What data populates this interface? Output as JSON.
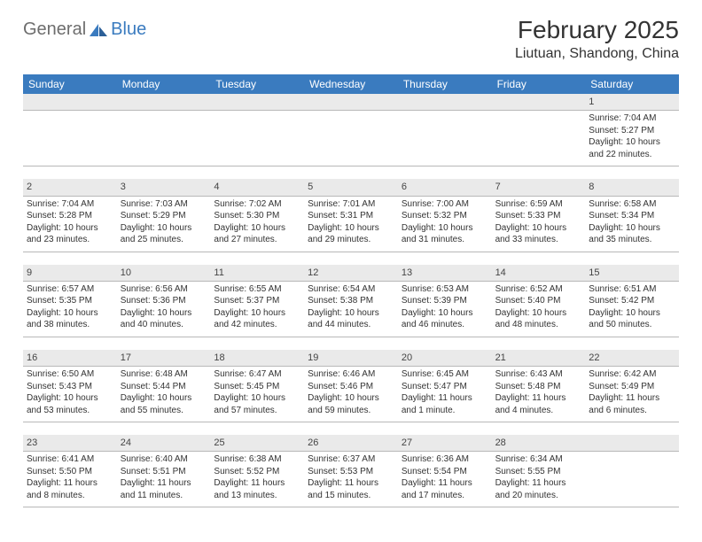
{
  "logo": {
    "part1": "General",
    "part2": "Blue"
  },
  "title": "February 2025",
  "location": "Liutuan, Shandong, China",
  "colors": {
    "header_bg": "#3a7bbf",
    "header_text": "#ffffff",
    "daynum_bg": "#eaeaea",
    "text": "#333333",
    "rule": "#b8b8b8",
    "background": "#ffffff"
  },
  "day_names": [
    "Sunday",
    "Monday",
    "Tuesday",
    "Wednesday",
    "Thursday",
    "Friday",
    "Saturday"
  ],
  "weeks": [
    [
      null,
      null,
      null,
      null,
      null,
      null,
      {
        "n": "1",
        "sunrise": "Sunrise: 7:04 AM",
        "sunset": "Sunset: 5:27 PM",
        "daylight1": "Daylight: 10 hours",
        "daylight2": "and 22 minutes."
      }
    ],
    [
      {
        "n": "2",
        "sunrise": "Sunrise: 7:04 AM",
        "sunset": "Sunset: 5:28 PM",
        "daylight1": "Daylight: 10 hours",
        "daylight2": "and 23 minutes."
      },
      {
        "n": "3",
        "sunrise": "Sunrise: 7:03 AM",
        "sunset": "Sunset: 5:29 PM",
        "daylight1": "Daylight: 10 hours",
        "daylight2": "and 25 minutes."
      },
      {
        "n": "4",
        "sunrise": "Sunrise: 7:02 AM",
        "sunset": "Sunset: 5:30 PM",
        "daylight1": "Daylight: 10 hours",
        "daylight2": "and 27 minutes."
      },
      {
        "n": "5",
        "sunrise": "Sunrise: 7:01 AM",
        "sunset": "Sunset: 5:31 PM",
        "daylight1": "Daylight: 10 hours",
        "daylight2": "and 29 minutes."
      },
      {
        "n": "6",
        "sunrise": "Sunrise: 7:00 AM",
        "sunset": "Sunset: 5:32 PM",
        "daylight1": "Daylight: 10 hours",
        "daylight2": "and 31 minutes."
      },
      {
        "n": "7",
        "sunrise": "Sunrise: 6:59 AM",
        "sunset": "Sunset: 5:33 PM",
        "daylight1": "Daylight: 10 hours",
        "daylight2": "and 33 minutes."
      },
      {
        "n": "8",
        "sunrise": "Sunrise: 6:58 AM",
        "sunset": "Sunset: 5:34 PM",
        "daylight1": "Daylight: 10 hours",
        "daylight2": "and 35 minutes."
      }
    ],
    [
      {
        "n": "9",
        "sunrise": "Sunrise: 6:57 AM",
        "sunset": "Sunset: 5:35 PM",
        "daylight1": "Daylight: 10 hours",
        "daylight2": "and 38 minutes."
      },
      {
        "n": "10",
        "sunrise": "Sunrise: 6:56 AM",
        "sunset": "Sunset: 5:36 PM",
        "daylight1": "Daylight: 10 hours",
        "daylight2": "and 40 minutes."
      },
      {
        "n": "11",
        "sunrise": "Sunrise: 6:55 AM",
        "sunset": "Sunset: 5:37 PM",
        "daylight1": "Daylight: 10 hours",
        "daylight2": "and 42 minutes."
      },
      {
        "n": "12",
        "sunrise": "Sunrise: 6:54 AM",
        "sunset": "Sunset: 5:38 PM",
        "daylight1": "Daylight: 10 hours",
        "daylight2": "and 44 minutes."
      },
      {
        "n": "13",
        "sunrise": "Sunrise: 6:53 AM",
        "sunset": "Sunset: 5:39 PM",
        "daylight1": "Daylight: 10 hours",
        "daylight2": "and 46 minutes."
      },
      {
        "n": "14",
        "sunrise": "Sunrise: 6:52 AM",
        "sunset": "Sunset: 5:40 PM",
        "daylight1": "Daylight: 10 hours",
        "daylight2": "and 48 minutes."
      },
      {
        "n": "15",
        "sunrise": "Sunrise: 6:51 AM",
        "sunset": "Sunset: 5:42 PM",
        "daylight1": "Daylight: 10 hours",
        "daylight2": "and 50 minutes."
      }
    ],
    [
      {
        "n": "16",
        "sunrise": "Sunrise: 6:50 AM",
        "sunset": "Sunset: 5:43 PM",
        "daylight1": "Daylight: 10 hours",
        "daylight2": "and 53 minutes."
      },
      {
        "n": "17",
        "sunrise": "Sunrise: 6:48 AM",
        "sunset": "Sunset: 5:44 PM",
        "daylight1": "Daylight: 10 hours",
        "daylight2": "and 55 minutes."
      },
      {
        "n": "18",
        "sunrise": "Sunrise: 6:47 AM",
        "sunset": "Sunset: 5:45 PM",
        "daylight1": "Daylight: 10 hours",
        "daylight2": "and 57 minutes."
      },
      {
        "n": "19",
        "sunrise": "Sunrise: 6:46 AM",
        "sunset": "Sunset: 5:46 PM",
        "daylight1": "Daylight: 10 hours",
        "daylight2": "and 59 minutes."
      },
      {
        "n": "20",
        "sunrise": "Sunrise: 6:45 AM",
        "sunset": "Sunset: 5:47 PM",
        "daylight1": "Daylight: 11 hours",
        "daylight2": "and 1 minute."
      },
      {
        "n": "21",
        "sunrise": "Sunrise: 6:43 AM",
        "sunset": "Sunset: 5:48 PM",
        "daylight1": "Daylight: 11 hours",
        "daylight2": "and 4 minutes."
      },
      {
        "n": "22",
        "sunrise": "Sunrise: 6:42 AM",
        "sunset": "Sunset: 5:49 PM",
        "daylight1": "Daylight: 11 hours",
        "daylight2": "and 6 minutes."
      }
    ],
    [
      {
        "n": "23",
        "sunrise": "Sunrise: 6:41 AM",
        "sunset": "Sunset: 5:50 PM",
        "daylight1": "Daylight: 11 hours",
        "daylight2": "and 8 minutes."
      },
      {
        "n": "24",
        "sunrise": "Sunrise: 6:40 AM",
        "sunset": "Sunset: 5:51 PM",
        "daylight1": "Daylight: 11 hours",
        "daylight2": "and 11 minutes."
      },
      {
        "n": "25",
        "sunrise": "Sunrise: 6:38 AM",
        "sunset": "Sunset: 5:52 PM",
        "daylight1": "Daylight: 11 hours",
        "daylight2": "and 13 minutes."
      },
      {
        "n": "26",
        "sunrise": "Sunrise: 6:37 AM",
        "sunset": "Sunset: 5:53 PM",
        "daylight1": "Daylight: 11 hours",
        "daylight2": "and 15 minutes."
      },
      {
        "n": "27",
        "sunrise": "Sunrise: 6:36 AM",
        "sunset": "Sunset: 5:54 PM",
        "daylight1": "Daylight: 11 hours",
        "daylight2": "and 17 minutes."
      },
      {
        "n": "28",
        "sunrise": "Sunrise: 6:34 AM",
        "sunset": "Sunset: 5:55 PM",
        "daylight1": "Daylight: 11 hours",
        "daylight2": "and 20 minutes."
      },
      null
    ]
  ]
}
